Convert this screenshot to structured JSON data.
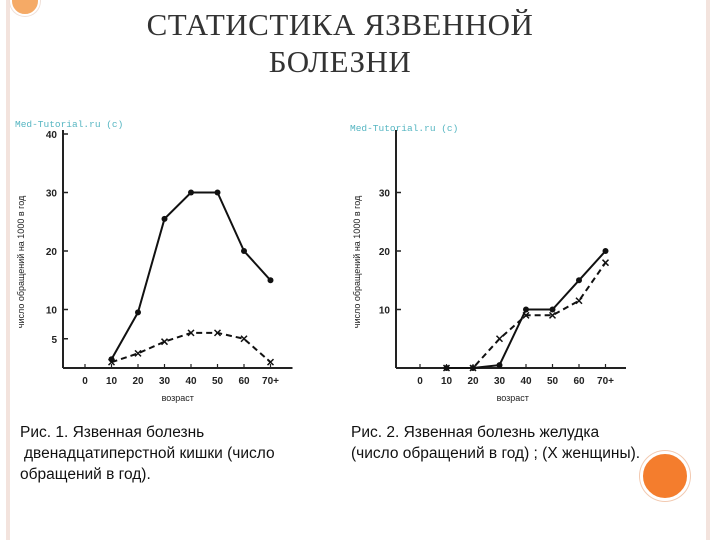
{
  "slide": {
    "title_lines": [
      "СТАТИСТИКА ЯЗВЕННОЙ",
      "БОЛЕЗНИ"
    ],
    "caption_left_lines": [
      "Рис. 1. Язвенная болезнь",
      "двенадцатиперстной кишки (число",
      "обращений в год)."
    ],
    "caption_right_lines": [
      "Рис. 2. Язвенная болезнь желудка",
      "(число обращений в год) ; (X женщины)."
    ],
    "accent_color": "#f47d2d",
    "frame_color": "#f3e3dd"
  },
  "chart_data": [
    {
      "type": "line",
      "watermark": "Med-Tutorial.ru (c)",
      "xlabel": "возраст",
      "ylabel": "число обращений на 1000 в год",
      "x_ticks": [
        "0",
        "10",
        "20",
        "30",
        "40",
        "50",
        "60",
        "70+"
      ],
      "y_ticks": [
        5,
        10,
        20,
        30,
        40
      ],
      "xlim": [
        0,
        70
      ],
      "ylim": [
        0,
        40
      ],
      "grid": false,
      "series": [
        {
          "marker": "dot",
          "line_style": "solid",
          "x": [
            10,
            20,
            30,
            40,
            50,
            60,
            70
          ],
          "y": [
            1.5,
            9.5,
            25.5,
            30,
            30,
            20,
            15
          ]
        },
        {
          "marker": "x",
          "line_style": "dashed",
          "x": [
            10,
            20,
            30,
            40,
            50,
            60,
            70
          ],
          "y": [
            1,
            2.5,
            4.5,
            6,
            6,
            5,
            1
          ]
        }
      ]
    },
    {
      "type": "line",
      "watermark": "Med-Tutorial.ru (c)",
      "xlabel": "возраст",
      "ylabel": "число обращений на 1000 в год",
      "x_ticks": [
        "0",
        "10",
        "20",
        "30",
        "40",
        "50",
        "60",
        "70+"
      ],
      "y_ticks": [
        10,
        20,
        30
      ],
      "xlim": [
        0,
        70
      ],
      "ylim": [
        0,
        40
      ],
      "grid": false,
      "series": [
        {
          "marker": "dot",
          "line_style": "solid",
          "x": [
            10,
            20,
            30,
            40,
            50,
            60,
            70
          ],
          "y": [
            0,
            0,
            0.5,
            10,
            10,
            15,
            20
          ]
        },
        {
          "marker": "x",
          "line_style": "dashed",
          "x": [
            10,
            20,
            30,
            40,
            50,
            60,
            70
          ],
          "y": [
            0,
            0,
            5,
            9,
            9,
            11.5,
            18
          ]
        }
      ]
    }
  ]
}
